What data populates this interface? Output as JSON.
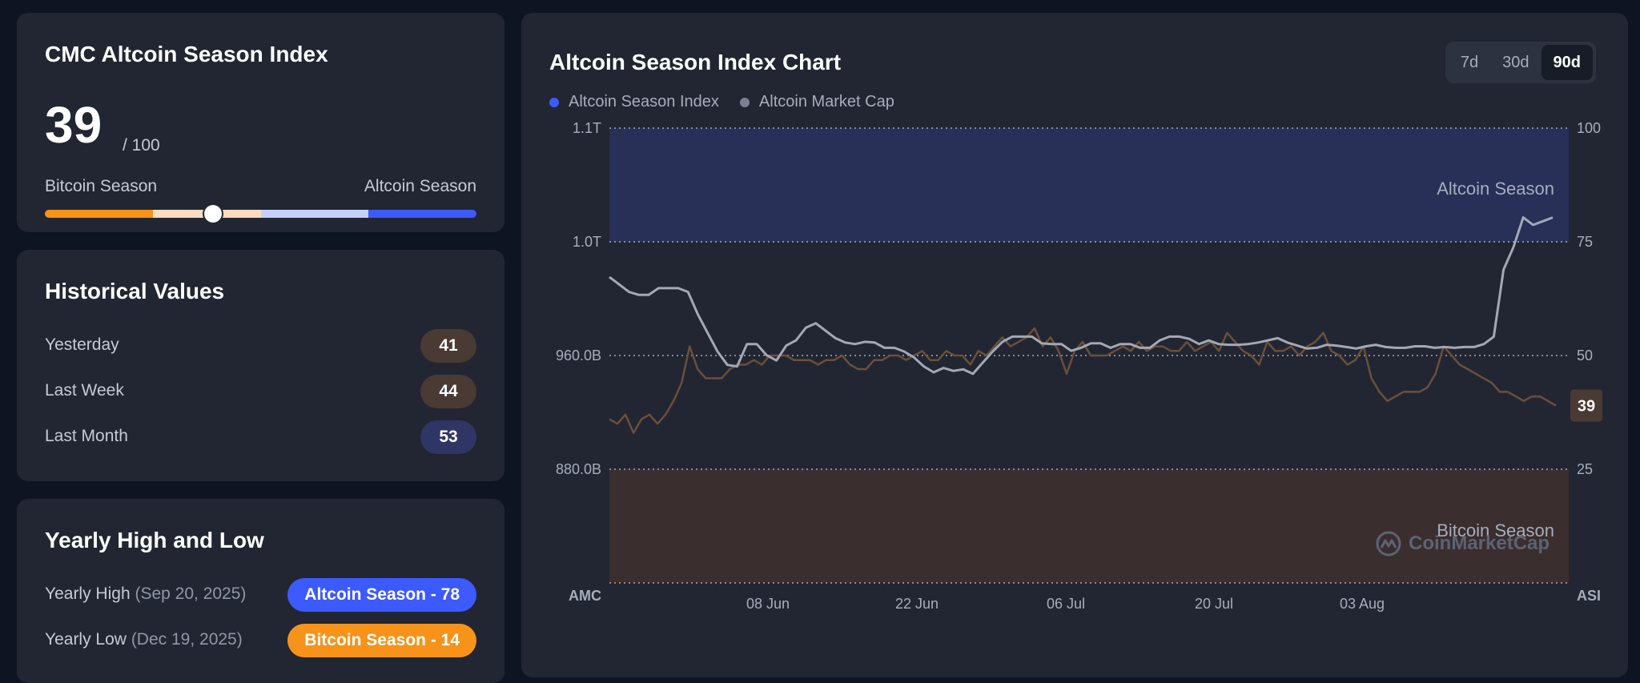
{
  "index_card": {
    "title": "CMC Altcoin Season Index",
    "value": "39",
    "max": "/ 100",
    "left_label": "Bitcoin Season",
    "right_label": "Altcoin Season",
    "indicator_fraction": 0.39,
    "bar_colors": [
      "#f7931a",
      "#fcdcc0",
      "#c6d0fb",
      "#3d5afe"
    ]
  },
  "historical": {
    "title": "Historical Values",
    "rows": [
      {
        "label": "Yesterday",
        "value": "41",
        "color": "#4a3a34"
      },
      {
        "label": "Last Week",
        "value": "44",
        "color": "#4a3a34"
      },
      {
        "label": "Last Month",
        "value": "53",
        "color": "#2f3666"
      }
    ]
  },
  "yearly": {
    "title": "Yearly High and Low",
    "rows": [
      {
        "label": "Yearly High",
        "date": "(Sep 20, 2025)",
        "pill": "Altcoin Season - 78",
        "color": "#3d5afe"
      },
      {
        "label": "Yearly Low",
        "date": "(Dec 19, 2025)",
        "pill": "Bitcoin Season - 14",
        "color": "#f7931a"
      }
    ]
  },
  "chart": {
    "title": "Altcoin Season Index Chart",
    "ranges": [
      "7d",
      "30d",
      "90d"
    ],
    "active_range": "90d",
    "watermark": "CoinMarketCap",
    "zone_top_label": "Altcoin Season",
    "zone_bottom_label": "Bitcoin Season",
    "current_value_label": "39"
  },
  "chart_data": {
    "type": "line",
    "title": "Altcoin Season Index Chart",
    "legend": [
      {
        "name": "Altcoin Season Index",
        "color": "#3d5afe"
      },
      {
        "name": "Altcoin Market Cap",
        "color": "#7a8090"
      }
    ],
    "legend_position": "top-left",
    "grid": true,
    "x_ticks": [
      "08 Jun",
      "22 Jun",
      "06 Jul",
      "20 Jul",
      "03 Aug"
    ],
    "left_axis": {
      "label": "AMC",
      "ticks": [
        "1.1T",
        "1.0T",
        "960.0B",
        "880.0B"
      ]
    },
    "right_axis": {
      "label": "ASI",
      "ticks": [
        "100",
        "75",
        "50",
        "25"
      ],
      "ylim": [
        0,
        100
      ]
    },
    "zones": [
      {
        "name": "Altcoin Season",
        "from": 75,
        "to": 100,
        "color": "#283058"
      },
      {
        "name": "Bitcoin Season",
        "from": 0,
        "to": 25,
        "color": "#3a2e2e"
      }
    ],
    "series": [
      {
        "name": "Altcoin Season Index",
        "axis": "right",
        "values": [
          36,
          35,
          37,
          33,
          36,
          37,
          35,
          37,
          40,
          44,
          52,
          47,
          45,
          45,
          45,
          47,
          48,
          48,
          49,
          48,
          50,
          50,
          50,
          49,
          49,
          49,
          48,
          49,
          49,
          50,
          48,
          47,
          47,
          49,
          49,
          50,
          50,
          49,
          50,
          51,
          49,
          49,
          51,
          50,
          50,
          48,
          51,
          50,
          52,
          54,
          52,
          53,
          54,
          56,
          52,
          54,
          51,
          46,
          51,
          53,
          50,
          50,
          50,
          51,
          52,
          51,
          53,
          51,
          52,
          52,
          51,
          51,
          53,
          51,
          52,
          53,
          51,
          55,
          53,
          51,
          50,
          48,
          53,
          51,
          51,
          52,
          50,
          52,
          53,
          55,
          51,
          50,
          48,
          49,
          52,
          45,
          42,
          40,
          41,
          42,
          42,
          42,
          43,
          46,
          52,
          50,
          48,
          47,
          46,
          45,
          44,
          42,
          42,
          41,
          40,
          41,
          41,
          40,
          39
        ]
      },
      {
        "name": "Altcoin Market Cap",
        "axis": "left",
        "unit": "B",
        "values": [
          1000,
          990,
          980,
          976,
          976,
          985,
          985,
          985,
          980,
          950,
          925,
          900,
          882,
          880,
          910,
          910,
          895,
          888,
          908,
          915,
          932,
          938,
          928,
          918,
          912,
          910,
          913,
          912,
          905,
          905,
          900,
          892,
          880,
          872,
          878,
          874,
          876,
          870,
          885,
          900,
          913,
          920,
          920,
          920,
          911,
          910,
          910,
          901,
          905,
          911,
          911,
          905,
          910,
          910,
          905,
          905,
          915,
          920,
          920,
          917,
          910,
          915,
          910,
          909,
          909,
          910,
          912,
          915,
          918,
          912,
          908,
          904,
          905,
          909,
          908,
          906,
          904,
          907,
          909,
          906,
          905,
          905,
          907,
          907,
          905,
          906,
          905,
          906,
          906,
          910,
          920,
          1010,
          1040,
          1080,
          1070,
          1075,
          1080
        ]
      }
    ]
  }
}
